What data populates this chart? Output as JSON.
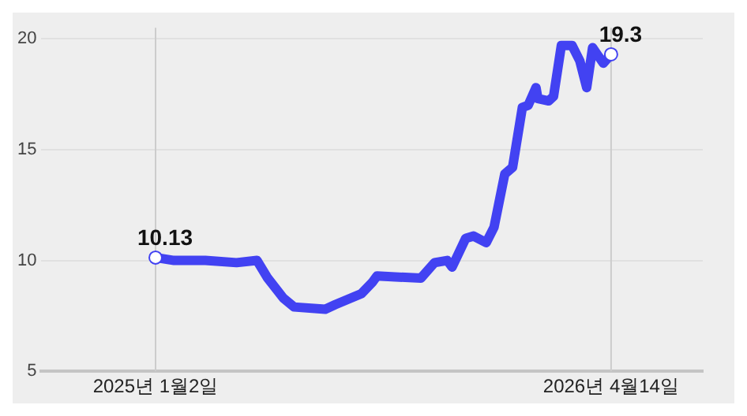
{
  "chart_data": {
    "type": "line",
    "x": [
      "2025-01-02",
      "2025-01-21",
      "2025-02-22",
      "2025-03-26",
      "2025-04-16",
      "2025-04-27",
      "2025-05-13",
      "2025-05-24",
      "2025-06-25",
      "2025-07-05",
      "2025-08-01",
      "2025-08-12",
      "2025-08-17",
      "2025-10-01",
      "2025-10-15",
      "2025-10-28",
      "2025-11-02",
      "2025-11-16",
      "2025-11-24",
      "2025-12-07",
      "2025-12-15",
      "2025-12-26",
      "2026-01-03",
      "2026-01-13",
      "2026-01-19",
      "2026-01-27",
      "2026-01-29",
      "2026-02-09",
      "2026-02-14",
      "2026-02-22",
      "2026-03-05",
      "2026-03-13",
      "2026-03-20",
      "2026-03-26",
      "2026-04-06",
      "2026-04-14"
    ],
    "series": [
      {
        "color": "#4242f2",
        "line_style": "solid",
        "values": [
          10.13,
          10.0,
          10.0,
          9.9,
          10.0,
          9.2,
          8.3,
          7.9,
          7.8,
          8.0,
          8.5,
          9.0,
          9.3,
          9.2,
          9.9,
          10.0,
          9.7,
          11.0,
          11.1,
          10.8,
          11.5,
          13.9,
          14.2,
          16.9,
          17.0,
          17.8,
          17.3,
          17.2,
          17.4,
          19.7,
          19.7,
          19.0,
          17.8,
          19.6,
          18.9,
          19.3
        ],
        "value_labels": [
          "10.13",
          null,
          null,
          null,
          null,
          null,
          null,
          null,
          null,
          null,
          null,
          null,
          null,
          null,
          null,
          null,
          null,
          null,
          null,
          null,
          null,
          null,
          null,
          null,
          null,
          null,
          null,
          null,
          null,
          null,
          null,
          null,
          null,
          null,
          null,
          "19.3"
        ]
      }
    ],
    "xlim": [
      "2024-09-07",
      "2026-07-17"
    ],
    "xticks": [
      {
        "value": "2025-01-02",
        "label": "2025년 1월2일"
      },
      {
        "value": "2026-04-14",
        "label": "2026년 4월14일"
      }
    ],
    "ylim": [
      5,
      20.5
    ],
    "yticks": [
      5,
      10,
      15,
      20
    ],
    "grid": "y",
    "legend": false,
    "ref_lines": [
      {
        "axis": "x",
        "value": "2025-01-02",
        "color": "#cccccc"
      },
      {
        "axis": "x",
        "value": "2026-04-14",
        "color": "#cccccc"
      }
    ]
  }
}
